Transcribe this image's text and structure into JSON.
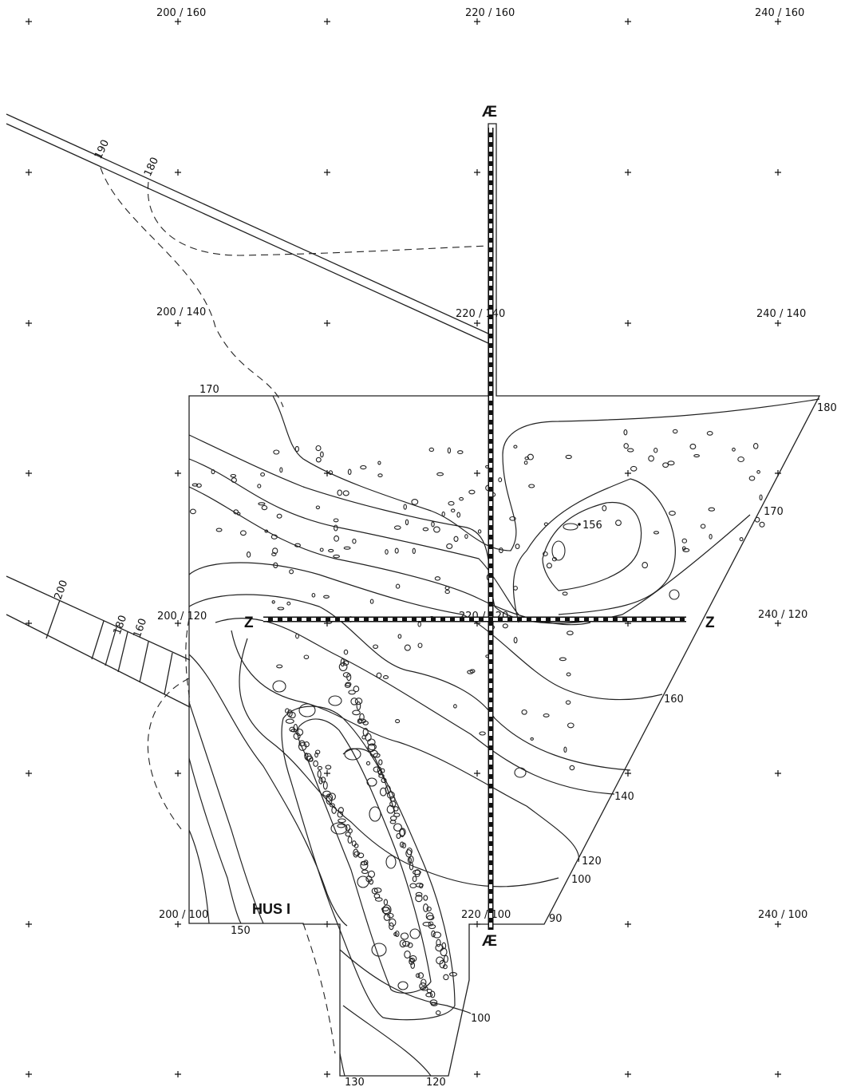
{
  "grid_labels": [
    "200 / 160",
    "220 / 160",
    "240 / 160",
    "200 / 140",
    "220 / 140",
    "240 / 140",
    "200 / 120",
    "220 / 120",
    "240 / 120",
    "200 / 100",
    "220 / 100",
    "240 / 100"
  ],
  "section_marks": {
    "ae_top": "Æ",
    "ae_bottom": "Æ",
    "z_left": "Z",
    "z_right": "Z"
  },
  "house_label": "HUS I",
  "spot_height": "156",
  "contour_labels": {
    "c170_top": "170",
    "c180_right": "180",
    "c170_right": "170",
    "c160_right": "160",
    "c140_right": "140",
    "c120_right": "120",
    "c100_right": "100",
    "c90": "90",
    "c150": "150",
    "c100_bottom": "100",
    "c130": "130",
    "c120_bottom": "120",
    "c190_road": "190",
    "c180_road": "180",
    "c200_road2": "200",
    "c180_road2": "180",
    "c160_road2": "160"
  }
}
